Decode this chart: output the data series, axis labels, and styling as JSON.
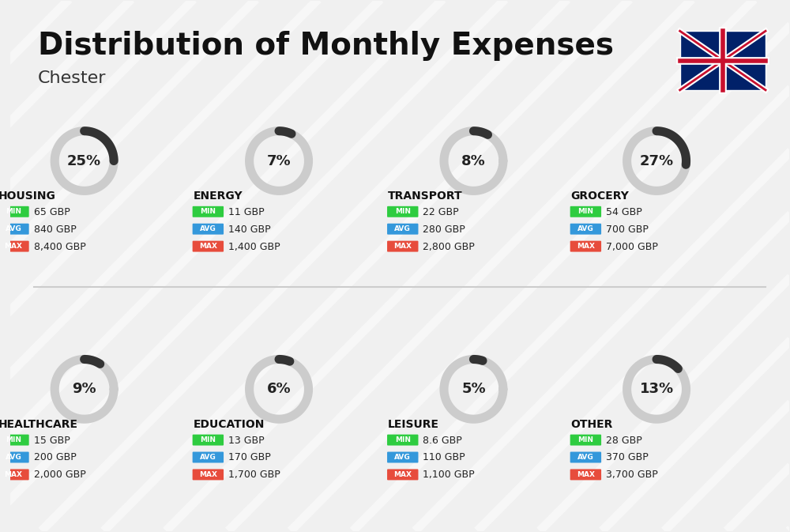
{
  "title": "Distribution of Monthly Expenses",
  "subtitle": "Chester",
  "background_color": "#f0f0f0",
  "categories": [
    {
      "name": "HOUSING",
      "percent": 25,
      "icon": "🏗",
      "min": "65 GBP",
      "avg": "840 GBP",
      "max": "8,400 GBP",
      "row": 0,
      "col": 0
    },
    {
      "name": "ENERGY",
      "percent": 7,
      "icon": "⚡",
      "min": "11 GBP",
      "avg": "140 GBP",
      "max": "1,400 GBP",
      "row": 0,
      "col": 1
    },
    {
      "name": "TRANSPORT",
      "percent": 8,
      "icon": "🚌",
      "min": "22 GBP",
      "avg": "280 GBP",
      "max": "2,800 GBP",
      "row": 0,
      "col": 2
    },
    {
      "name": "GROCERY",
      "percent": 27,
      "icon": "🛍",
      "min": "54 GBP",
      "avg": "700 GBP",
      "max": "7,000 GBP",
      "row": 0,
      "col": 3
    },
    {
      "name": "HEALTHCARE",
      "percent": 9,
      "icon": "❤",
      "min": "15 GBP",
      "avg": "200 GBP",
      "max": "2,000 GBP",
      "row": 1,
      "col": 0
    },
    {
      "name": "EDUCATION",
      "percent": 6,
      "icon": "🎓",
      "min": "13 GBP",
      "avg": "170 GBP",
      "max": "1,700 GBP",
      "row": 1,
      "col": 1
    },
    {
      "name": "LEISURE",
      "percent": 5,
      "icon": "🛍",
      "min": "8.6 GBP",
      "avg": "110 GBP",
      "max": "1,100 GBP",
      "row": 1,
      "col": 2
    },
    {
      "name": "OTHER",
      "percent": 13,
      "icon": "💰",
      "min": "28 GBP",
      "avg": "370 GBP",
      "max": "3,700 GBP",
      "row": 1,
      "col": 3
    }
  ],
  "color_min": "#2ecc40",
  "color_avg": "#3498db",
  "color_max": "#e74c3c",
  "arc_color": "#333333",
  "arc_bg_color": "#cccccc"
}
